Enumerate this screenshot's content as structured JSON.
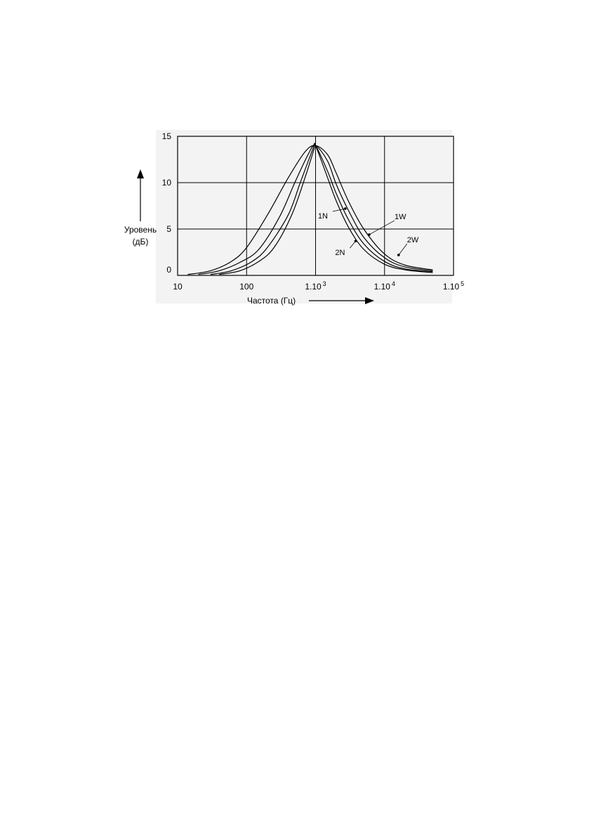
{
  "chart_data": {
    "type": "line",
    "xscale": "log",
    "xlim": [
      10,
      100000
    ],
    "ylim": [
      0,
      15
    ],
    "grid": true,
    "ylabel_lines": [
      "Уровень",
      "(дБ)"
    ],
    "xlabel": "Частота (Гц)",
    "yticks": [
      {
        "value": 15,
        "label": "15"
      },
      {
        "value": 10,
        "label": "10"
      },
      {
        "value": 5,
        "label": "5"
      },
      {
        "value": 0,
        "label": "0"
      }
    ],
    "xticks": [
      {
        "value": 10,
        "label": "10",
        "exp": ""
      },
      {
        "value": 100,
        "label": "100",
        "exp": ""
      },
      {
        "value": 1000,
        "label": "1.10",
        "exp": "3"
      },
      {
        "value": 10000,
        "label": "1.10",
        "exp": "4"
      },
      {
        "value": 100000,
        "label": "1.10",
        "exp": "5"
      }
    ],
    "series": [
      {
        "name": "2W",
        "x": [
          14,
          30,
          60,
          100,
          200,
          400,
          700,
          1000,
          1500,
          2000,
          3000,
          5000,
          10000,
          20000,
          50000
        ],
        "y": [
          0.1,
          0.5,
          1.5,
          3.0,
          6.5,
          10.5,
          13.3,
          14.0,
          13.0,
          11.0,
          8.0,
          5.0,
          2.3,
          1.1,
          0.6
        ]
      },
      {
        "name": "1W",
        "x": [
          20,
          40,
          80,
          150,
          300,
          500,
          800,
          1000,
          1500,
          2000,
          3000,
          5000,
          10000,
          20000,
          50000
        ],
        "y": [
          0.1,
          0.5,
          1.4,
          2.8,
          6.3,
          10.0,
          13.2,
          14.0,
          12.3,
          9.8,
          7.0,
          4.1,
          1.9,
          0.9,
          0.5
        ]
      },
      {
        "name": "1N",
        "x": [
          30,
          60,
          120,
          200,
          400,
          600,
          900,
          1000,
          1500,
          2000,
          3000,
          5000,
          10000,
          20000,
          50000
        ],
        "y": [
          0.1,
          0.5,
          1.5,
          3.0,
          6.5,
          10.0,
          13.5,
          14.0,
          11.2,
          8.8,
          6.0,
          3.4,
          1.5,
          0.7,
          0.4
        ]
      },
      {
        "name": "2N",
        "x": [
          40,
          80,
          150,
          250,
          450,
          700,
          950,
          1000,
          1500,
          2000,
          3000,
          5000,
          10000,
          20000,
          50000
        ],
        "y": [
          0.1,
          0.5,
          1.5,
          3.0,
          6.5,
          10.5,
          13.6,
          14.0,
          10.5,
          8.0,
          5.2,
          2.8,
          1.2,
          0.6,
          0.3
        ]
      }
    ],
    "curve_labels": [
      {
        "name": "1N",
        "text": "1N",
        "at_x": 2700,
        "at_y": 7.2
      },
      {
        "name": "2N",
        "text": "2N",
        "at_x": 3800,
        "at_y": 3.7
      },
      {
        "name": "1W",
        "text": "1W",
        "at_x": 6000,
        "at_y": 4.4
      },
      {
        "name": "2W",
        "text": "2W",
        "at_x": 16000,
        "at_y": 2.2
      }
    ]
  }
}
